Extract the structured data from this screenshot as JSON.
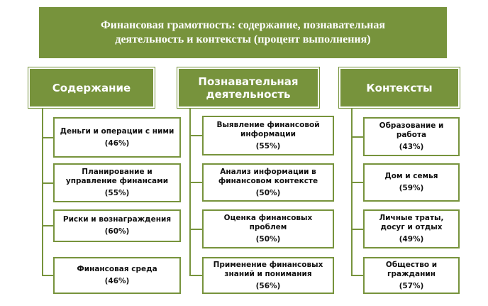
{
  "title": "Финансовая грамотность: содержание, познавательная деятельность и контексты (процент выполнения)",
  "columns": [
    {
      "header": "Содержание",
      "items": [
        {
          "label": "Деньги и операции с ними",
          "value": "(46%)"
        },
        {
          "label": "Планирование и управление финансами",
          "value": "(55%)"
        },
        {
          "label": "Риски и вознаграждения",
          "value": "(60%)"
        },
        {
          "label": "Финансовая среда",
          "value": "(46%)"
        }
      ]
    },
    {
      "header": "Познавательная деятельность",
      "items": [
        {
          "label": "Выявление финансовой информации",
          "value": "(55%)"
        },
        {
          "label": "Анализ информации в финансовом контексте",
          "value": "(50%)"
        },
        {
          "label": "Оценка финансовых проблем",
          "value": "(50%)"
        },
        {
          "label": "Применение финансовых знаний и понимания",
          "value": "(56%)"
        }
      ]
    },
    {
      "header": "Контексты",
      "items": [
        {
          "label": "Образование и работа",
          "value": "(43%)"
        },
        {
          "label": "Дом и семья",
          "value": "(59%)"
        },
        {
          "label": "Личные траты, досуг и отдых",
          "value": "(49%)"
        },
        {
          "label": "Общество и гражданин",
          "value": "(57%)"
        }
      ]
    }
  ]
}
